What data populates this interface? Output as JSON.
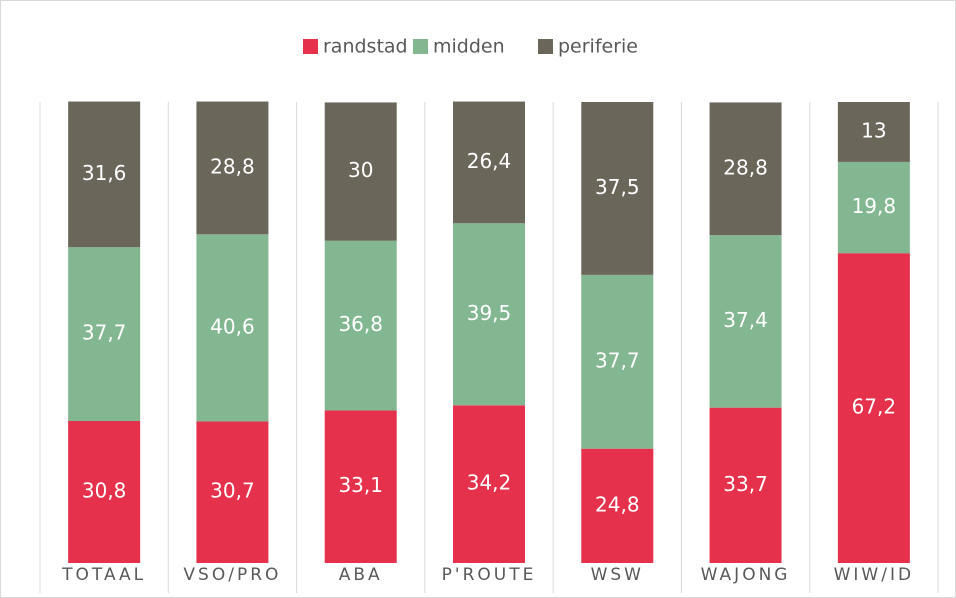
{
  "chart_data": {
    "type": "stacked_bar",
    "categories": [
      "TOTAAL",
      "VSO/PRO",
      "ABA",
      "P'ROUTE",
      "WSW",
      "WAJONG",
      "WIW/ID"
    ],
    "series": [
      {
        "name": "randstad",
        "color": "#e5314b",
        "values": [
          30.8,
          30.7,
          33.1,
          34.2,
          24.8,
          33.7,
          67.2
        ],
        "value_labels": [
          "30,8",
          "30,7",
          "33,1",
          "34,2",
          "24,8",
          "33,7",
          "67,2"
        ]
      },
      {
        "name": "midden",
        "color": "#82b792",
        "values": [
          37.7,
          40.6,
          36.8,
          39.5,
          37.7,
          37.4,
          19.8
        ],
        "value_labels": [
          "37,7",
          "40,6",
          "36,8",
          "39,5",
          "37,7",
          "37,4",
          "19,8"
        ]
      },
      {
        "name": "periferie",
        "color": "#6b665a",
        "values": [
          31.6,
          28.8,
          30,
          26.4,
          37.5,
          28.8,
          13
        ],
        "value_labels": [
          "31,6",
          "28,8",
          "30",
          "26,4",
          "37,5",
          "28,8",
          "13"
        ]
      }
    ],
    "ylim": [
      0,
      100
    ],
    "legend": "top"
  }
}
